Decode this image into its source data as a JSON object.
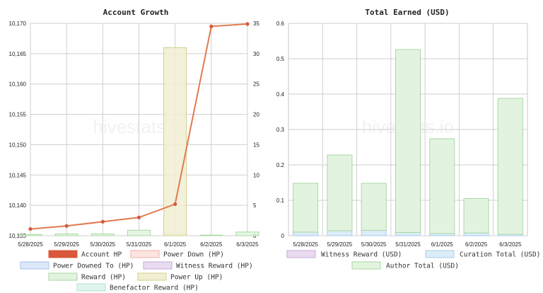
{
  "chart_data": [
    {
      "type": "bar",
      "title": "Account Growth",
      "watermark": "hivestats.io",
      "categories": [
        "5/28/2025",
        "5/29/2025",
        "5/30/2025",
        "5/31/2025",
        "6/1/2025",
        "6/2/2025",
        "6/3/2025"
      ],
      "y_left": {
        "min": 10135,
        "max": 10170,
        "ticks": [
          "10,135",
          "10,140",
          "10,145",
          "10,150",
          "10,155",
          "10,160",
          "10,165",
          "10,170"
        ]
      },
      "y_right": {
        "min": 0,
        "max": 35,
        "ticks": [
          "0",
          "5",
          "10",
          "15",
          "20",
          "25",
          "30",
          "35"
        ]
      },
      "grid": true,
      "series": [
        {
          "name": "Account HP",
          "type": "line",
          "axis": "left",
          "color": "#e07b4f",
          "legend_color": "#d9573b",
          "values": [
            10136.1,
            10136.6,
            10137.3,
            10138.0,
            10140.2,
            10169.5,
            10169.9
          ]
        },
        {
          "name": "Power Down (HP)",
          "type": "bar",
          "axis": "right",
          "color": "#fce4e0",
          "stroke": "#f0b0a8",
          "values": [
            0,
            0,
            0,
            0,
            0,
            0,
            0
          ]
        },
        {
          "name": "Power Downed To (HP)",
          "type": "bar",
          "axis": "right",
          "color": "#dce8fa",
          "stroke": "#a8c0ee",
          "values": [
            0,
            0,
            0,
            0,
            0,
            0,
            0
          ]
        },
        {
          "name": "Witness Reward (HP)",
          "type": "bar",
          "axis": "right",
          "color": "#eadcf0",
          "stroke": "#c8a8d8",
          "values": [
            0,
            0,
            0,
            0,
            0,
            0,
            0
          ]
        },
        {
          "name": "Reward (HP)",
          "type": "bar",
          "axis": "right",
          "color": "#e2f4e0",
          "stroke": "#a8d8a2",
          "values": [
            0.2,
            0.3,
            0.3,
            0.9,
            0.3,
            0.1,
            0.6
          ]
        },
        {
          "name": "Power Up (HP)",
          "type": "bar",
          "axis": "right",
          "color": "#f1eed2",
          "stroke": "#d2cc8c",
          "values": [
            0,
            0,
            0,
            0,
            31,
            0,
            0
          ]
        },
        {
          "name": "Benefactor Reward (HP)",
          "type": "bar",
          "axis": "right",
          "color": "#e0f5ee",
          "stroke": "#b0e0d0",
          "values": [
            0,
            0,
            0,
            0,
            0,
            0,
            0
          ]
        }
      ]
    },
    {
      "type": "bar",
      "title": "Total Earned (USD)",
      "watermark": "hivestats.io",
      "categories": [
        "5/28/2025",
        "5/29/2025",
        "5/30/2025",
        "5/31/2025",
        "6/1/2025",
        "6/2/2025",
        "6/3/2025"
      ],
      "y": {
        "min": 0,
        "max": 0.6,
        "ticks": [
          "0",
          "0.1",
          "0.2",
          "0.3",
          "0.4",
          "0.5",
          "0.6"
        ]
      },
      "grid": true,
      "stacked": true,
      "series": [
        {
          "name": "Witness Reward (USD)",
          "color": "#eadcf0",
          "stroke": "#c8a8d8",
          "values": [
            0,
            0,
            0,
            0,
            0,
            0,
            0
          ]
        },
        {
          "name": "Curation Total (USD)",
          "color": "#dcecf8",
          "stroke": "#a8cce8",
          "values": [
            0.01,
            0.014,
            0.015,
            0.009,
            0.006,
            0.008,
            0.004
          ]
        },
        {
          "name": "Author Total (USD)",
          "color": "#e2f4e0",
          "stroke": "#a8d8a2",
          "values": [
            0.138,
            0.214,
            0.133,
            0.517,
            0.268,
            0.097,
            0.384
          ]
        }
      ]
    }
  ]
}
